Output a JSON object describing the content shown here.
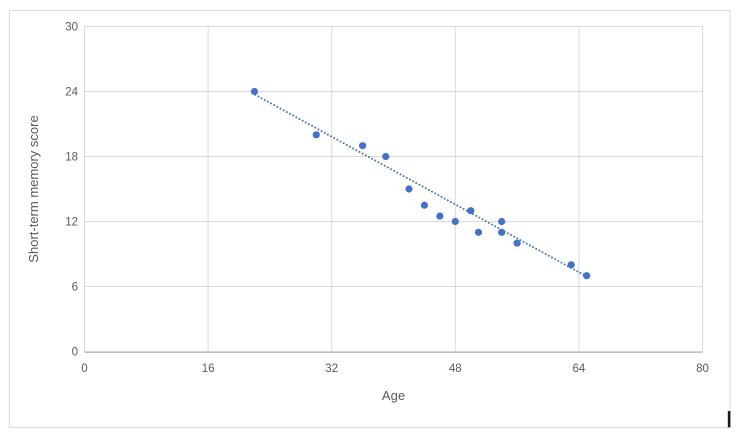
{
  "chart_data": {
    "type": "scatter",
    "title": "",
    "xlabel": "Age",
    "ylabel": "Short-term memory score",
    "xlim": [
      0,
      80
    ],
    "ylim": [
      0,
      30
    ],
    "x_ticks": [
      0,
      16,
      32,
      48,
      64,
      80
    ],
    "y_ticks": [
      0,
      6,
      12,
      18,
      24,
      30
    ],
    "grid": true,
    "legend": "none",
    "points": [
      {
        "x": 22,
        "y": 24
      },
      {
        "x": 30,
        "y": 20
      },
      {
        "x": 36,
        "y": 19
      },
      {
        "x": 39,
        "y": 18
      },
      {
        "x": 42,
        "y": 15
      },
      {
        "x": 44,
        "y": 13.5
      },
      {
        "x": 46,
        "y": 12.5
      },
      {
        "x": 48,
        "y": 12
      },
      {
        "x": 50,
        "y": 13
      },
      {
        "x": 51,
        "y": 11
      },
      {
        "x": 54,
        "y": 12
      },
      {
        "x": 54,
        "y": 11
      },
      {
        "x": 56,
        "y": 10
      },
      {
        "x": 63,
        "y": 8
      },
      {
        "x": 65,
        "y": 7
      }
    ],
    "trendline": {
      "style": "round-dot",
      "x1": 22.1,
      "y1": 23.7,
      "x2": 65.2,
      "y2": 6.85
    },
    "colors": {
      "point": "#4472C4",
      "trendline": "#4472C4",
      "gridline": "#D9D9D9",
      "axis_line": "#BFBFBF",
      "label_text": "#595959",
      "frame_border": "#D9D9D9",
      "cursor_mark": "#1a1a1a",
      "background": "#FFFFFF"
    }
  }
}
